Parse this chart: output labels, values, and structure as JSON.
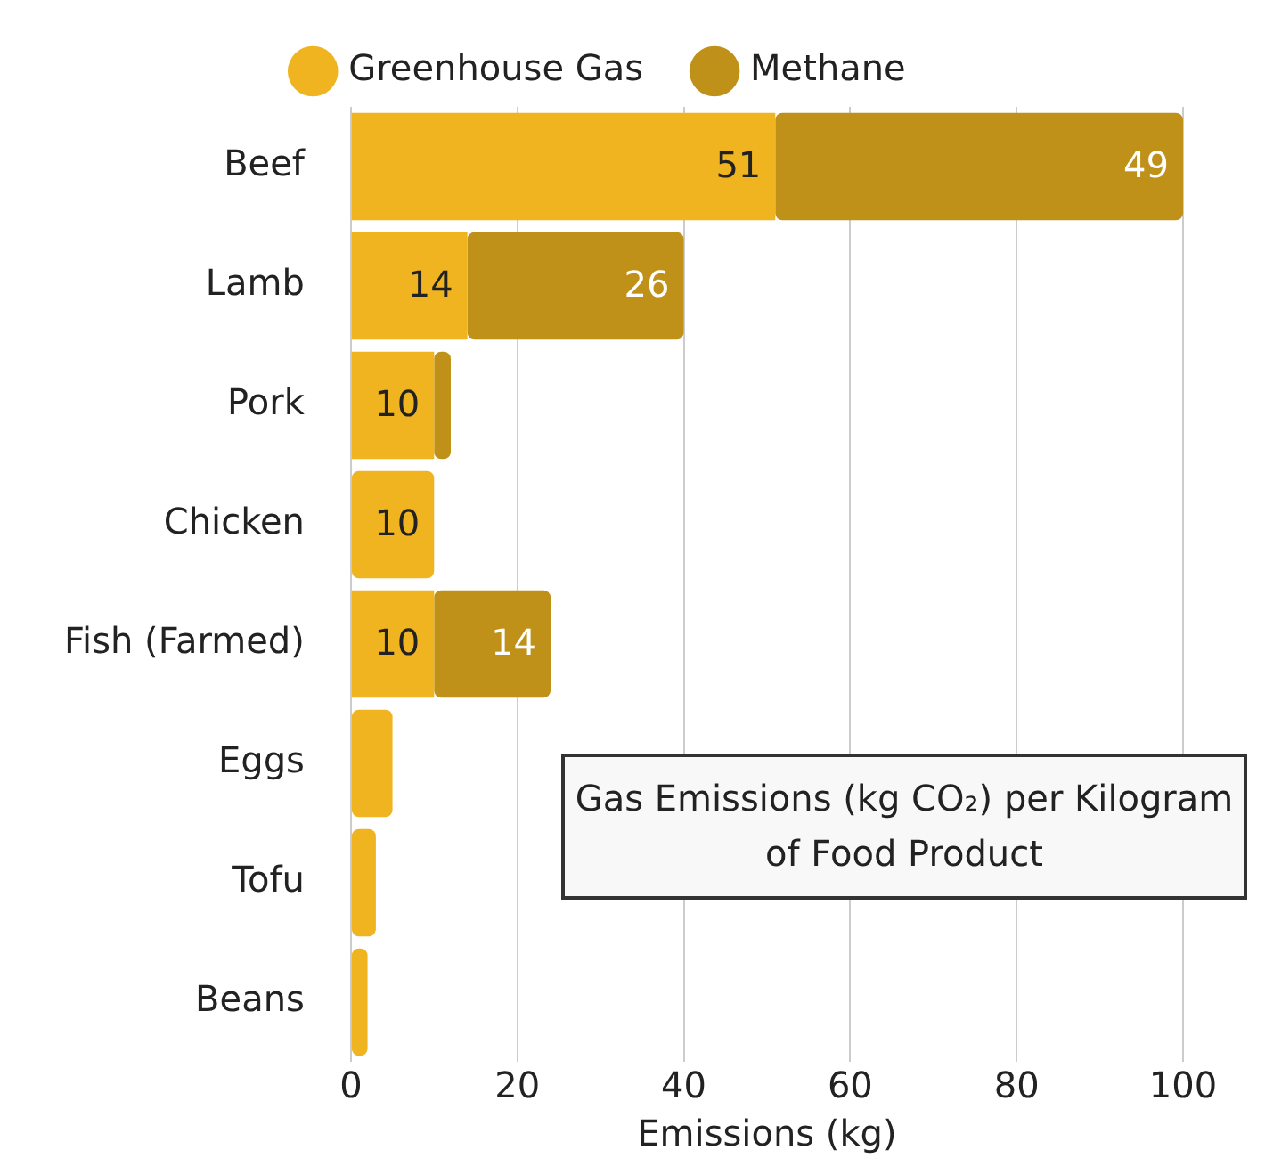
{
  "chart_data": {
    "type": "bar",
    "orientation": "horizontal",
    "stacked": true,
    "title": "Gas Emissions (kg CO₂) per Kilogram of Food Product",
    "xlabel": "Emissions (kg)",
    "categories": [
      "Beef",
      "Lamb",
      "Pork",
      "Chicken",
      "Fish (Farmed)",
      "Eggs",
      "Tofu",
      "Beans"
    ],
    "series": [
      {
        "name": "Greenhouse Gas",
        "color": "#efb420",
        "values": [
          51,
          14,
          10,
          10,
          10,
          5,
          3,
          2
        ],
        "value_labels": [
          "51",
          "14",
          "10",
          "10",
          "10",
          null,
          null,
          null
        ]
      },
      {
        "name": "Methane",
        "color": "#c09118",
        "values": [
          49,
          26,
          2,
          null,
          14,
          null,
          null,
          null
        ],
        "value_labels": [
          "49",
          "26",
          null,
          null,
          "14",
          null,
          null,
          null
        ]
      }
    ],
    "xlim": [
      0,
      100
    ],
    "xticks": [
      0,
      20,
      40,
      60,
      80,
      100
    ],
    "grid": "x",
    "legend": "top"
  }
}
